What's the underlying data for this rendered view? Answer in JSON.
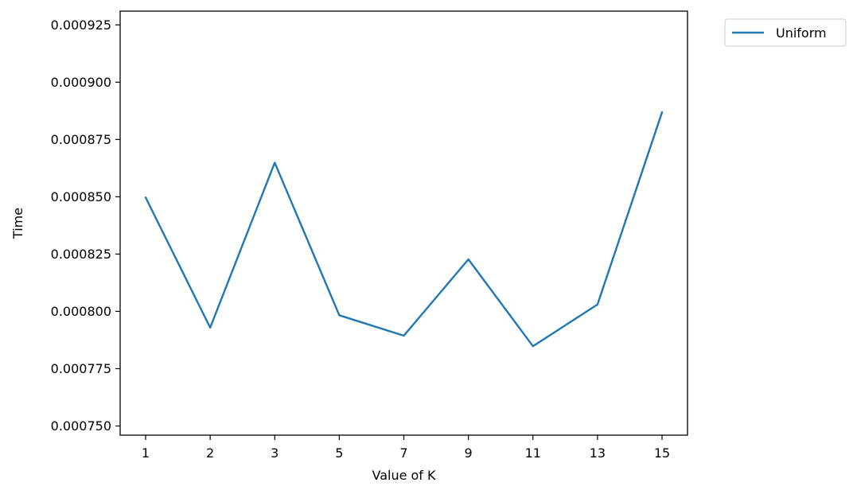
{
  "chart_data": {
    "type": "line",
    "xlabel": "Value of K",
    "ylabel": "Time",
    "categories": [
      "1",
      "2",
      "3",
      "5",
      "7",
      "9",
      "11",
      "13",
      "15"
    ],
    "series": [
      {
        "name": "Uniform",
        "color": "#1f77b4",
        "values": [
          0.0008497,
          0.0007929,
          0.0008649,
          0.0007983,
          0.0007894,
          0.0008227,
          0.0007848,
          0.000803,
          0.0008869
        ]
      }
    ],
    "ylim": [
      0.000746,
      0.000931
    ],
    "yticks": [
      "0.000750",
      "0.000775",
      "0.000800",
      "0.000825",
      "0.000850",
      "0.000875",
      "0.000900",
      "0.000925"
    ],
    "ytick_values": [
      0.00075,
      0.000775,
      0.0008,
      0.000825,
      0.00085,
      0.000875,
      0.0009,
      0.000925
    ],
    "grid": false,
    "legend_position": "outside-top-right"
  }
}
